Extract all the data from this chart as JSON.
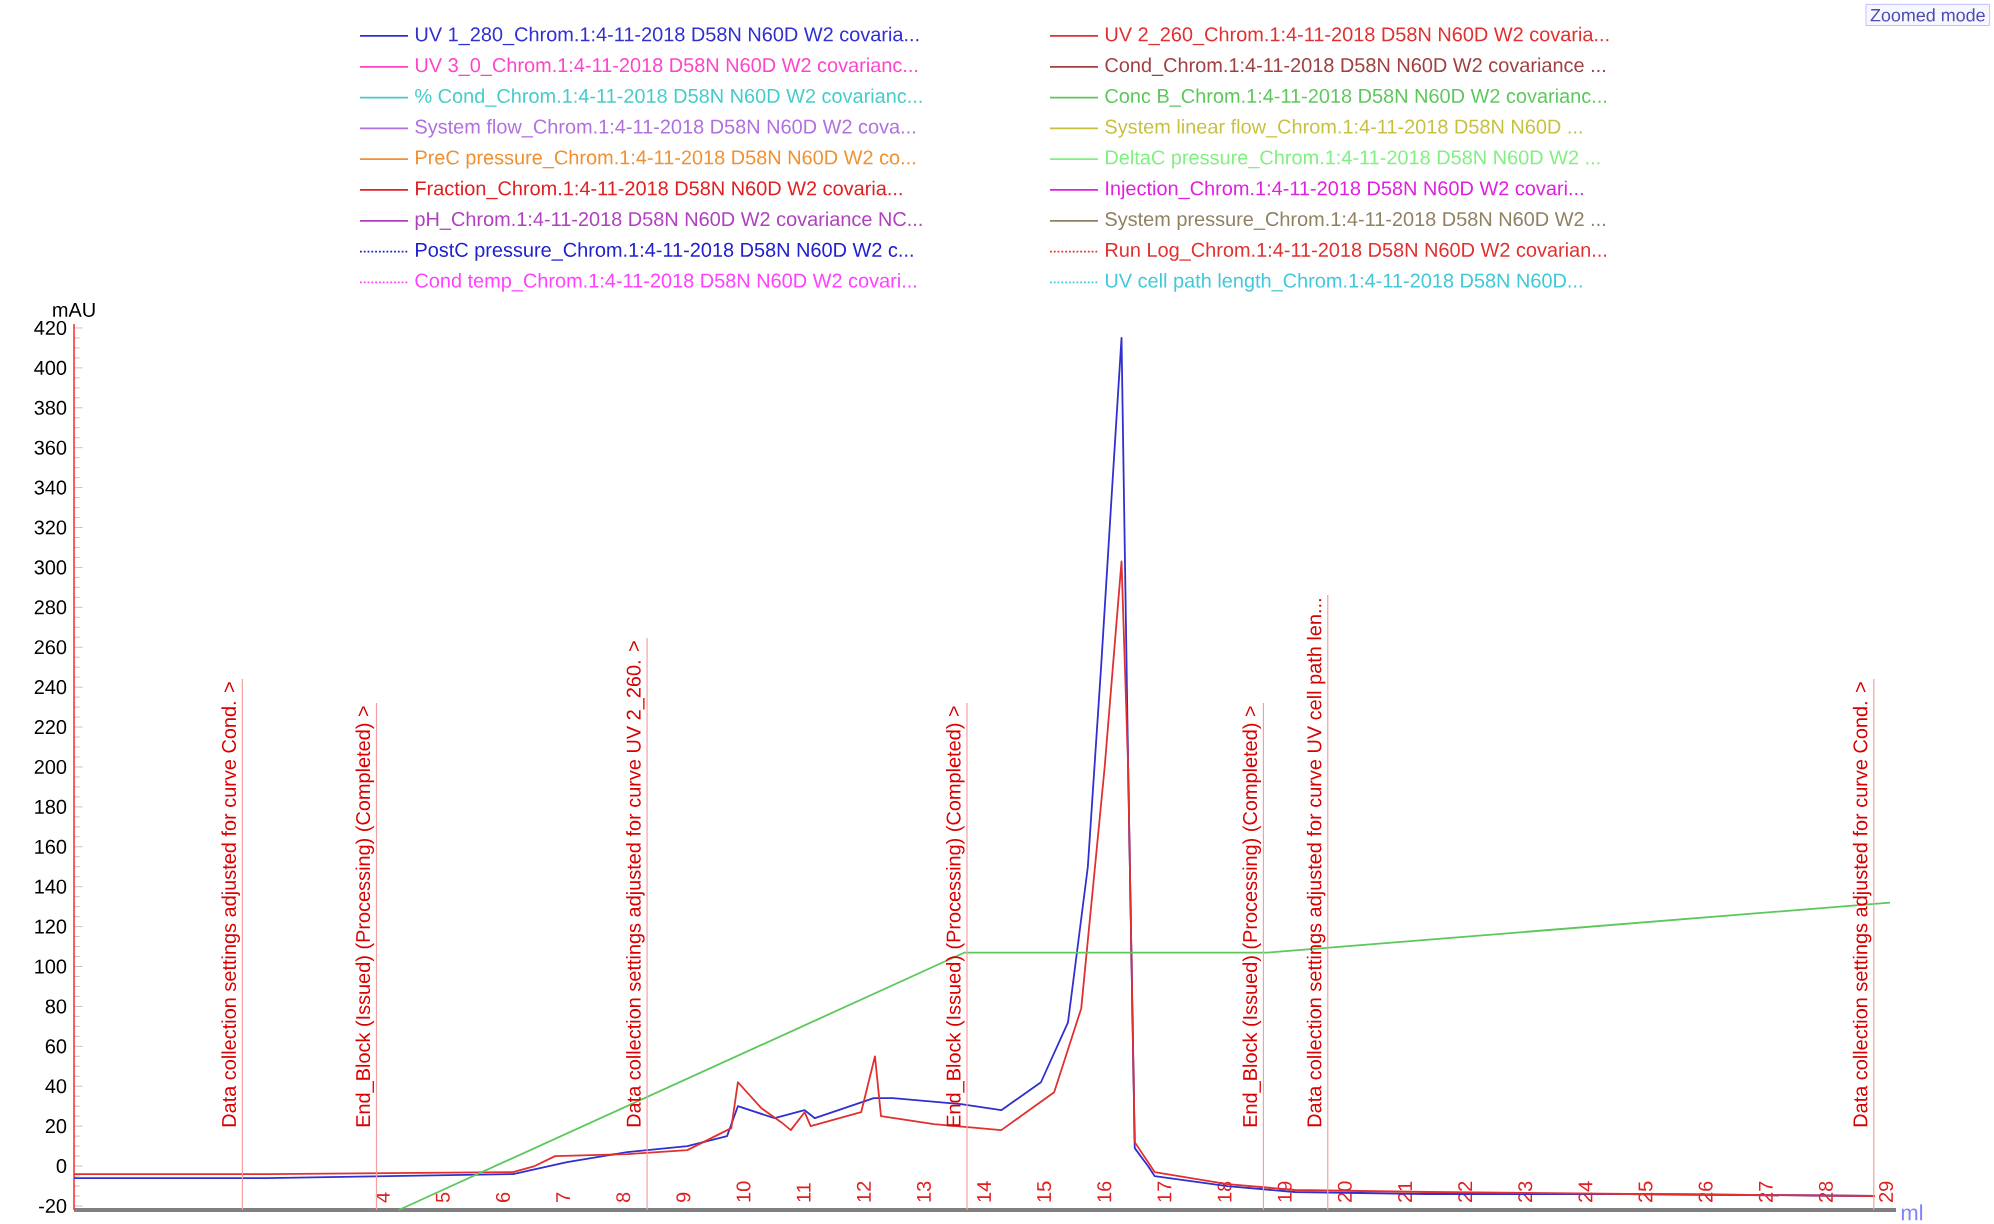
{
  "chart_data": {
    "type": "line",
    "xlabel": "ml",
    "ylabel": "mAU",
    "legend": "top",
    "xlim": [
      -1.2,
      29.1
    ],
    "ylim": [
      -22,
      422
    ],
    "xticks": [
      4,
      5,
      6,
      7,
      8,
      9,
      10,
      11,
      12,
      13,
      14,
      15,
      16,
      17,
      18,
      19,
      20,
      21,
      22,
      23,
      24,
      25,
      26,
      27,
      28,
      29
    ],
    "yticks": [
      -20,
      0,
      20,
      40,
      60,
      80,
      100,
      120,
      140,
      160,
      180,
      200,
      220,
      240,
      260,
      280,
      300,
      320,
      340,
      360,
      380,
      400,
      420
    ],
    "annotations": [
      "Zoomed mode"
    ],
    "series": [
      {
        "name": "UV 1_280_Chrom.1:4-11-2018 D58N N60D W2 covaria...",
        "color": "#3030d0",
        "x": [
          -1.2,
          2,
          6.1,
          7.0,
          8.0,
          9.0,
          9.66,
          9.84,
          10.45,
          10.95,
          11.12,
          12.1,
          12.42,
          13.55,
          14.22,
          14.88,
          15.33,
          15.66,
          15.88,
          16.05,
          16.22,
          16.33,
          16.44,
          16.66,
          16.77,
          17.98,
          19.1,
          21.3,
          24.64,
          28.75
        ],
        "values": [
          -6,
          -6,
          -4,
          2,
          7,
          10,
          15,
          30,
          24,
          28,
          24,
          34,
          34,
          31,
          28,
          42,
          72,
          150,
          250,
          333,
          415,
          200,
          9,
          0,
          -5,
          -10,
          -13,
          -14,
          -14,
          -15
        ]
      },
      {
        "name": "UV 3_0_Chrom.1:4-11-2018 D58N N60D W2 covarianc...",
        "color": "#ff44cc"
      },
      {
        "name": "% Cond_Chrom.1:4-11-2018 D58N N60D W2 covarianc...",
        "color": "#44cccc"
      },
      {
        "name": "System flow_Chrom.1:4-11-2018 D58N N60D W2 cova...",
        "color": "#b070e0"
      },
      {
        "name": "PreC pressure_Chrom.1:4-11-2018 D58N N60D W2 co...",
        "color": "#f09030"
      },
      {
        "name": "Fraction_Chrom.1:4-11-2018 D58N N60D W2 covaria...",
        "color": "#e02020"
      },
      {
        "name": "pH_Chrom.1:4-11-2018 D58N N60D W2 covariance NC...",
        "color": "#b040c0"
      },
      {
        "name": "PostC pressure_Chrom.1:4-11-2018 D58N N60D W2 c...",
        "color": "#2020d0",
        "line_style": "dotted"
      },
      {
        "name": "Cond temp_Chrom.1:4-11-2018 D58N N60D W2 covari...",
        "color": "#ff40ff",
        "line_style": "dotted"
      },
      {
        "name": "UV 2_260_Chrom.1:4-11-2018 D58N N60D W2 covaria...",
        "color": "#e03030",
        "x": [
          -1.2,
          2,
          6.1,
          6.46,
          6.8,
          8.0,
          9.0,
          9.73,
          9.84,
          10.23,
          10.56,
          10.72,
          10.95,
          11.05,
          11.89,
          12.12,
          12.22,
          13.1,
          14.22,
          15.1,
          15.55,
          15.94,
          16.22,
          16.33,
          16.44,
          16.77,
          17.98,
          19.1,
          21.3,
          24.64,
          28.75
        ],
        "values": [
          -4,
          -4,
          -3,
          0,
          5,
          6,
          8,
          19,
          42,
          29,
          22,
          18,
          27,
          20,
          27,
          55,
          25,
          21,
          18,
          37,
          79,
          200,
          303,
          200,
          12,
          -3,
          -9,
          -12,
          -13,
          -14,
          -15
        ]
      },
      {
        "name": "Cond_Chrom.1:4-11-2018 D58N N60D W2 covariance ...",
        "color": "#a04040"
      },
      {
        "name": "Conc B_Chrom.1:4-11-2018 D58N N60D W2 covarianc...",
        "color": "#5cc85c",
        "x": [
          4.2,
          13.61,
          18.65,
          29.0
        ],
        "values": [
          -22,
          107,
          107,
          132
        ]
      },
      {
        "name": "System linear flow_Chrom.1:4-11-2018 D58N N60D ...",
        "color": "#c8c040"
      },
      {
        "name": "DeltaC pressure_Chrom.1:4-11-2018 D58N N60D W2 ...",
        "color": "#80f080"
      },
      {
        "name": "Injection_Chrom.1:4-11-2018 D58N N60D W2 covari...",
        "color": "#e020e0"
      },
      {
        "name": "System pressure_Chrom.1:4-11-2018 D58N N60D W2 ...",
        "color": "#908060"
      },
      {
        "name": "Run Log_Chrom.1:4-11-2018 D58N N60D W2 covarian...",
        "color": "#e03030",
        "line_style": "dotted"
      },
      {
        "name": "UV cell path length_Chrom.1:4-11-2018 D58N N60D...",
        "color": "#40c8d8",
        "line_style": "dotted"
      }
    ],
    "ref_lines": [
      {
        "axis": "x",
        "value": 1.6,
        "label": "Data collection settings adjusted for curve Cond. >",
        "color": "#f4a0a0"
      },
      {
        "axis": "x",
        "value": 3.83,
        "label": "End_Block (Issued) (Processing) (Completed) >",
        "color": "#f4a0a0"
      },
      {
        "axis": "x",
        "value": 8.33,
        "label": "Data collection settings adjusted for curve UV 2_260. >",
        "color": "#f4a0a0"
      },
      {
        "axis": "x",
        "value": 13.65,
        "label": "End_Block (Issued) (Processing) (Completed) >",
        "color": "#f4a0a0"
      },
      {
        "axis": "x",
        "value": 18.58,
        "label": "End_Block (Issued) (Processing) (Completed) >",
        "color": "#f4a0a0"
      },
      {
        "axis": "x",
        "value": 19.65,
        "label": "Data collection settings adjusted for curve UV cell path len...",
        "color": "#f4a0a0"
      },
      {
        "axis": "x",
        "value": 28.73,
        "label": "Data collection settings adjusted for curve Cond. >",
        "color": "#f4a0a0"
      }
    ]
  }
}
